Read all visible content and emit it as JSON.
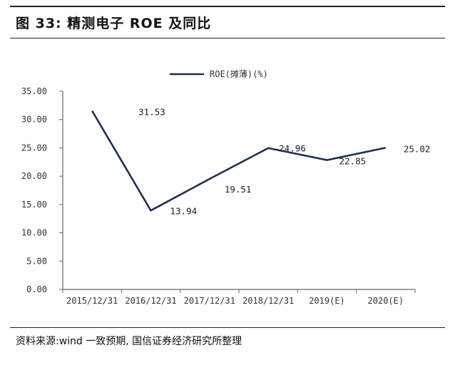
{
  "figure": {
    "title": "图 33: 精测电子 ROE 及同比",
    "source": "资料来源:wind 一致预期, 国信证券经济研究所整理"
  },
  "chart_data": {
    "type": "line",
    "categories": [
      "2015/12/31",
      "2016/12/31",
      "2017/12/31",
      "2018/12/31",
      "2019(E)",
      "2020(E)"
    ],
    "series": [
      {
        "name": "ROE(摊薄)(%)",
        "values": [
          31.53,
          13.94,
          19.51,
          24.96,
          22.85,
          25.02
        ],
        "labels": [
          "31.53",
          "13.94",
          "19.51",
          "24.96",
          "22.85",
          "25.02"
        ],
        "color": "#1f3050"
      }
    ],
    "yticks": [
      "0.00",
      "5.00",
      "10.00",
      "15.00",
      "20.00",
      "25.00",
      "30.00",
      "35.00"
    ],
    "ylim": [
      0,
      35
    ],
    "grid": false,
    "legend": "top-center",
    "title": "",
    "xlabel": "",
    "ylabel": ""
  }
}
